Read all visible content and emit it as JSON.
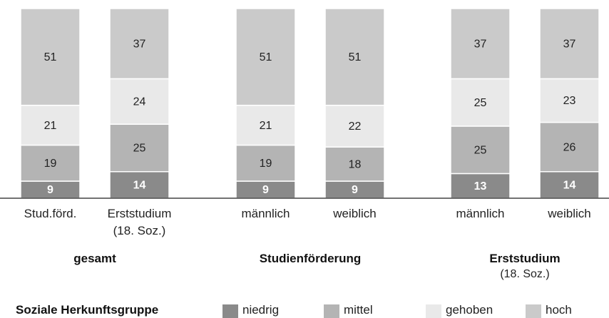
{
  "chart_data": {
    "type": "stacked_bar",
    "categories": [
      "Stud.förd.",
      "Erststudium\n(18. Soz.)",
      "männlich",
      "weiblich",
      "männlich",
      "weiblich"
    ],
    "groups": [
      {
        "name": "gesamt"
      },
      {
        "name": "Studienförderung"
      },
      {
        "name": "Erststudium",
        "note": "(18. Soz.)"
      }
    ],
    "legend_title": "Soziale Herkunftsgruppe",
    "ylim": [
      0,
      100
    ],
    "series": [
      {
        "name": "niedrig",
        "color": "#8a8a8a",
        "label_color": "#ffffff",
        "values": [
          9,
          14,
          9,
          9,
          13,
          14
        ]
      },
      {
        "name": "mittel",
        "color": "#b4b4b4",
        "label_color": "#222222",
        "values": [
          19,
          25,
          19,
          18,
          25,
          26
        ]
      },
      {
        "name": "gehoben",
        "color": "#e9e9e9",
        "label_color": "#222222",
        "values": [
          21,
          24,
          21,
          22,
          25,
          23
        ]
      },
      {
        "name": "hoch",
        "color": "#cacaca",
        "label_color": "#222222",
        "values": [
          51,
          37,
          51,
          51,
          37,
          37
        ]
      }
    ]
  }
}
